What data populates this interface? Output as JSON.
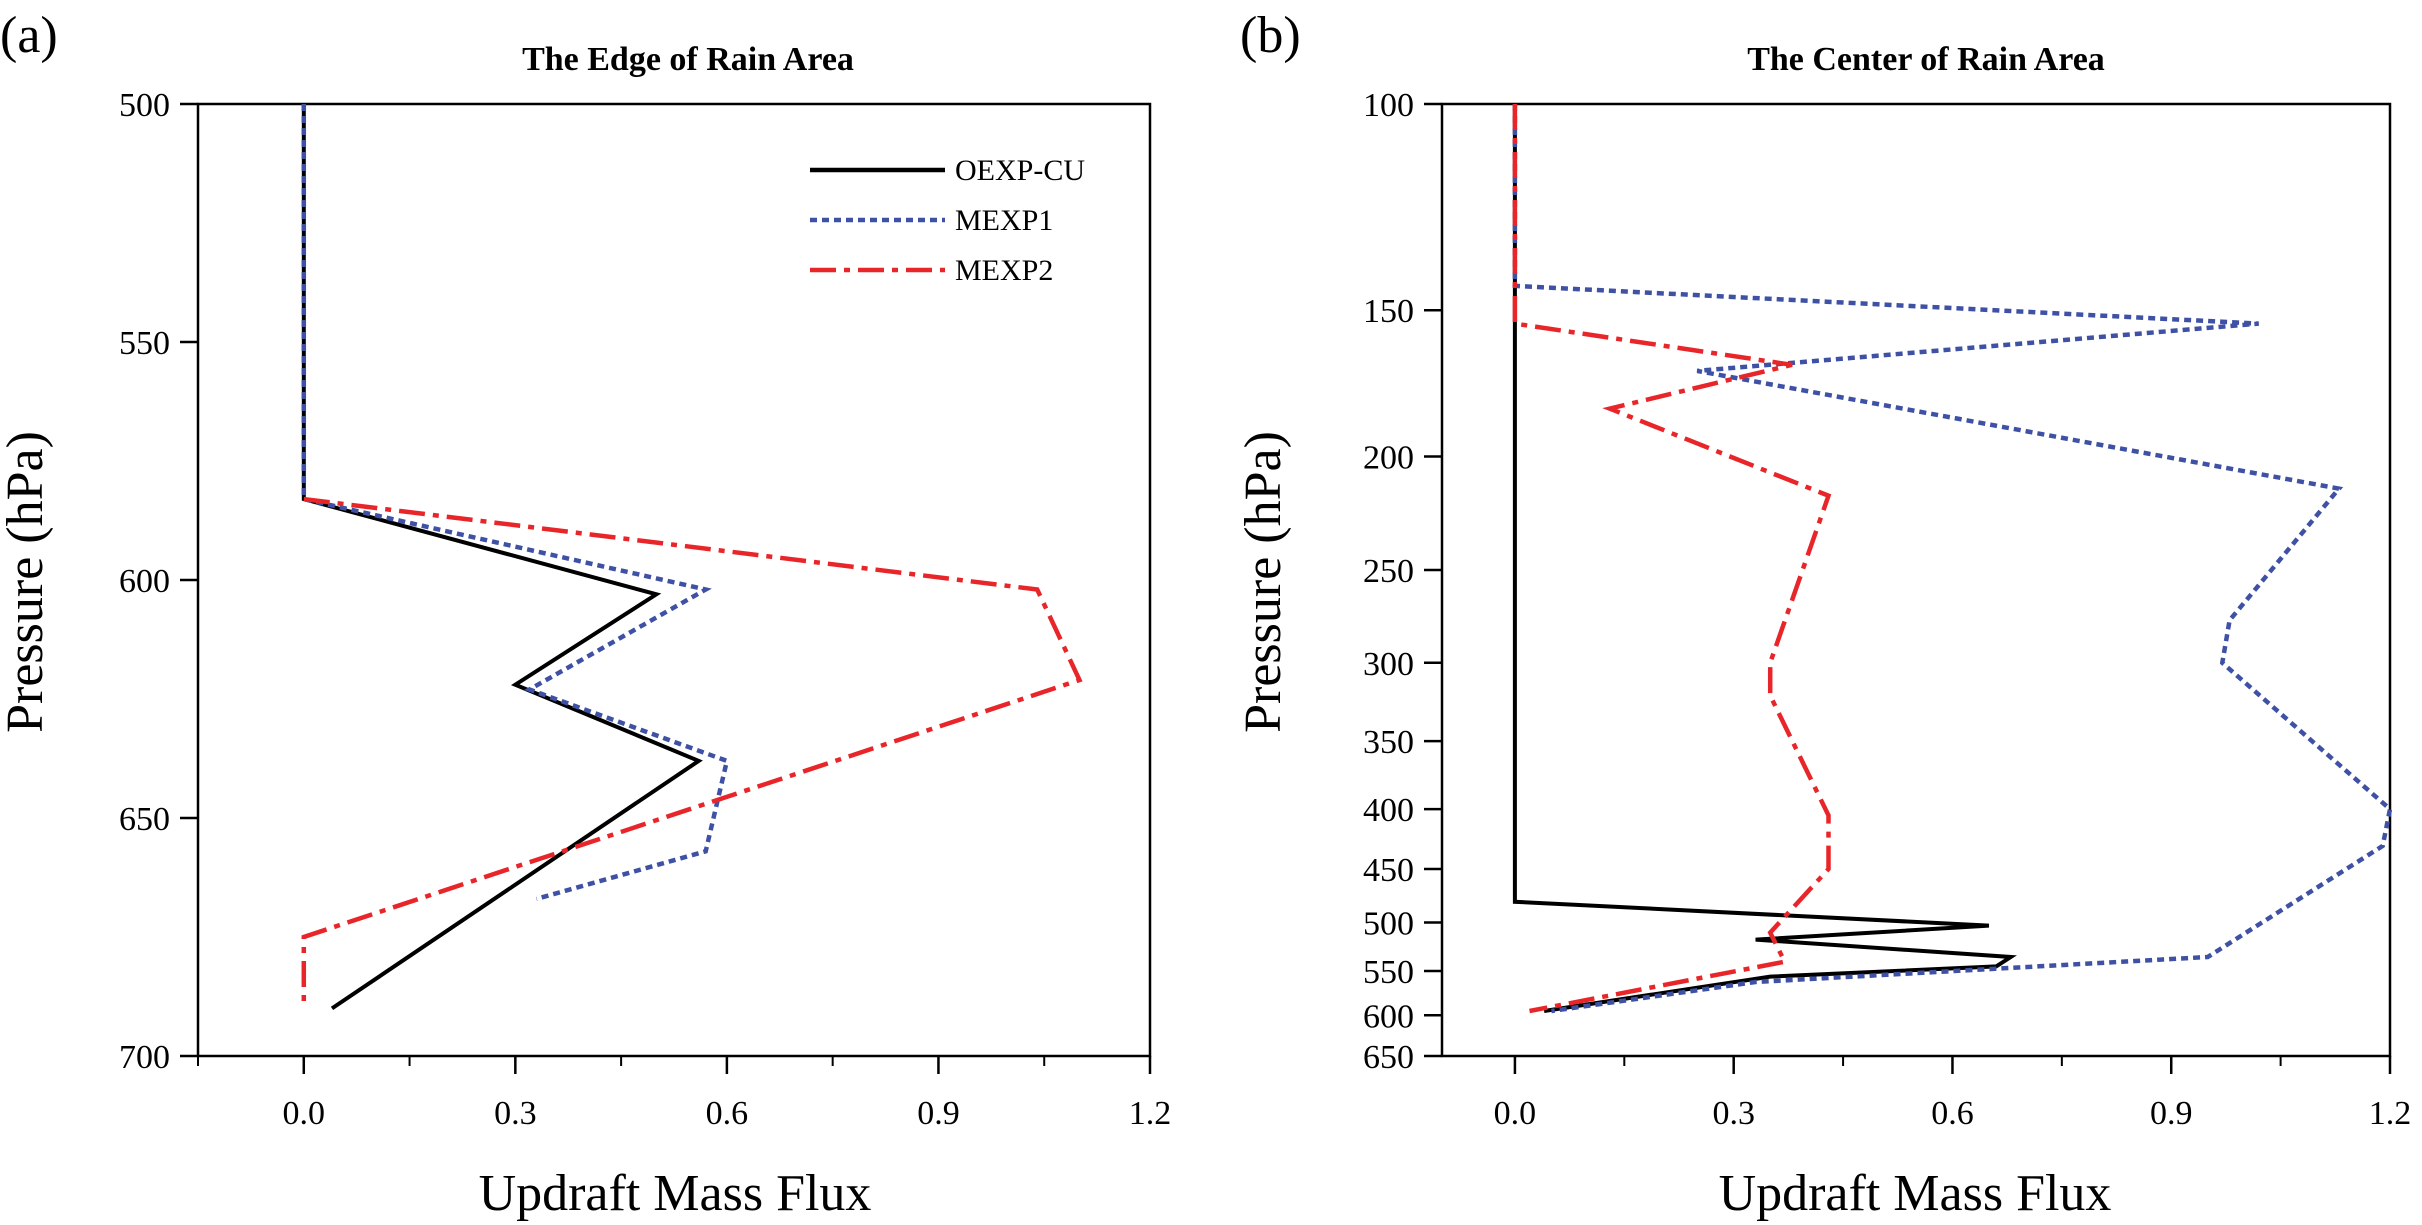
{
  "chart_data": [
    {
      "type": "line",
      "panel_label": "(a)",
      "title": "The Edge of Rain Area",
      "xlabel": "Updraft Mass Flux",
      "ylabel": "Pressure (hPa)",
      "xlim": [
        -0.15,
        1.2
      ],
      "ylim": [
        700,
        500
      ],
      "y_scale": "linear",
      "x_ticks": [
        0.0,
        0.3,
        0.6,
        0.9,
        1.2
      ],
      "x_tick_labels": [
        "0.0",
        "0.3",
        "0.6",
        "0.9",
        "1.2"
      ],
      "y_ticks": [
        500,
        550,
        600,
        650,
        700
      ],
      "y_tick_labels": [
        "500",
        "550",
        "600",
        "650",
        "700"
      ],
      "grid": false,
      "legend_position": "top-right",
      "series": [
        {
          "name": "OEXP-CU",
          "color": "#000000",
          "style": "solid",
          "points": [
            [
              0.0,
              500
            ],
            [
              0.0,
              583
            ],
            [
              0.5,
              603
            ],
            [
              0.3,
              622
            ],
            [
              0.56,
              638
            ],
            [
              0.04,
              690
            ]
          ]
        },
        {
          "name": "MEXP1",
          "color": "#3f51a5",
          "style": "dotted",
          "points": [
            [
              0.0,
              500
            ],
            [
              0.0,
              583
            ],
            [
              0.57,
              602
            ],
            [
              0.32,
              623
            ],
            [
              0.6,
              638
            ],
            [
              0.57,
              657
            ],
            [
              0.33,
              667
            ]
          ]
        },
        {
          "name": "MEXP2",
          "color": "#e8262a",
          "style": "dashdot",
          "points": [
            [
              0.0,
              583
            ],
            [
              1.04,
              602
            ],
            [
              1.1,
              621
            ],
            [
              0.0,
              675
            ],
            [
              0.0,
              689
            ]
          ]
        }
      ]
    },
    {
      "type": "line",
      "panel_label": "(b)",
      "title": "The Center of Rain Area",
      "xlabel": "Updraft Mass Flux",
      "ylabel": "Pressure (hPa)",
      "xlim": [
        -0.1,
        1.2
      ],
      "ylim": [
        650,
        100
      ],
      "y_scale": "log",
      "x_ticks": [
        0.0,
        0.3,
        0.6,
        0.9,
        1.2
      ],
      "x_tick_labels": [
        "0.0",
        "0.3",
        "0.6",
        "0.9",
        "1.2"
      ],
      "y_ticks": [
        100,
        150,
        200,
        250,
        300,
        350,
        400,
        450,
        500,
        550,
        600,
        650
      ],
      "y_tick_labels": [
        "100",
        "150",
        "200",
        "250",
        "300",
        "350",
        "400",
        "450",
        "500",
        "550",
        "600",
        "650"
      ],
      "grid": false,
      "series": [
        {
          "name": "OEXP-CU",
          "color": "#000000",
          "style": "solid",
          "points": [
            [
              0.0,
              100
            ],
            [
              0.0,
              480
            ],
            [
              0.65,
              503
            ],
            [
              0.33,
              517
            ],
            [
              0.68,
              535
            ],
            [
              0.66,
              545
            ],
            [
              0.35,
              556
            ],
            [
              0.04,
              595
            ]
          ]
        },
        {
          "name": "MEXP1",
          "color": "#3f51a5",
          "style": "dotted",
          "points": [
            [
              0.0,
              100
            ],
            [
              0.0,
              143
            ],
            [
              1.02,
              154
            ],
            [
              0.25,
              169
            ],
            [
              1.13,
              213
            ],
            [
              0.98,
              276
            ],
            [
              0.97,
              300
            ],
            [
              1.2,
              400
            ],
            [
              1.19,
              430
            ],
            [
              0.95,
              535
            ],
            [
              0.33,
              562
            ],
            [
              0.05,
              595
            ]
          ]
        },
        {
          "name": "MEXP2",
          "color": "#e8262a",
          "style": "dashdot",
          "points": [
            [
              0.0,
              100
            ],
            [
              0.0,
              154
            ],
            [
              0.38,
              167
            ],
            [
              0.13,
              182
            ],
            [
              0.43,
              216
            ],
            [
              0.35,
              300
            ],
            [
              0.35,
              320
            ],
            [
              0.43,
              405
            ],
            [
              0.43,
              450
            ],
            [
              0.35,
              510
            ],
            [
              0.37,
              540
            ],
            [
              0.02,
              595
            ]
          ]
        }
      ]
    }
  ]
}
